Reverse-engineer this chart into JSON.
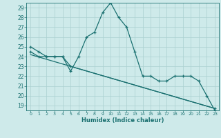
{
  "title": "",
  "xlabel": "Humidex (Indice chaleur)",
  "xlim": [
    -0.5,
    23.5
  ],
  "ylim": [
    18.5,
    29.5
  ],
  "yticks": [
    19,
    20,
    21,
    22,
    23,
    24,
    25,
    26,
    27,
    28,
    29
  ],
  "xticks": [
    0,
    1,
    2,
    3,
    4,
    5,
    6,
    7,
    8,
    9,
    10,
    11,
    12,
    13,
    14,
    15,
    16,
    17,
    18,
    19,
    20,
    21,
    22,
    23
  ],
  "line_color": "#1a7070",
  "bg_color": "#ceeaea",
  "grid_color": "#aad0d0",
  "line1_x": [
    0,
    1,
    2,
    3,
    4,
    5,
    6,
    7,
    8,
    9,
    10,
    11,
    12,
    13,
    14,
    15,
    16,
    17,
    18,
    19,
    20,
    21,
    22,
    23
  ],
  "line1_y": [
    25.0,
    24.5,
    24.0,
    24.0,
    24.0,
    22.5,
    24.0,
    26.0,
    26.5,
    28.5,
    29.5,
    28.0,
    27.0,
    24.5,
    22.0,
    22.0,
    21.5,
    21.5,
    22.0,
    22.0,
    22.0,
    21.5,
    20.0,
    18.5
  ],
  "line2_x": [
    0,
    1,
    2,
    3,
    4,
    5,
    23
  ],
  "line2_y": [
    24.5,
    24.0,
    24.0,
    24.0,
    24.0,
    23.0,
    18.7
  ],
  "line3_x": [
    0,
    23
  ],
  "line3_y": [
    24.2,
    18.7
  ]
}
